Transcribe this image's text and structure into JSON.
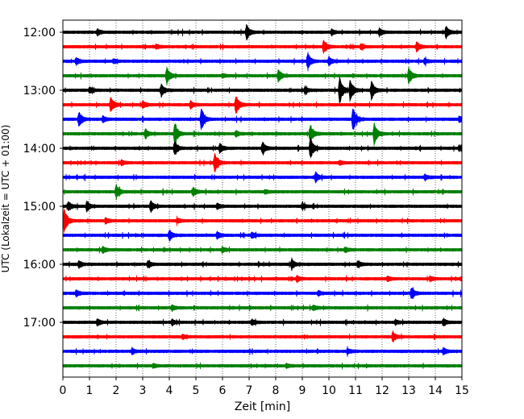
{
  "chart_data": {
    "type": "line",
    "title": "",
    "xlabel": "Zeit  [min]",
    "ylabel": "UTC (Lokalzeit = UTC + 01:00)",
    "xlim": [
      0,
      15
    ],
    "x_ticks": [
      0,
      1,
      2,
      3,
      4,
      5,
      6,
      7,
      8,
      9,
      10,
      11,
      12,
      13,
      14,
      15
    ],
    "y_tick_labels": [
      "12:00",
      "13:00",
      "14:00",
      "15:00",
      "16:00",
      "17:00"
    ],
    "trace_interval_min": 15,
    "trace_count": 24,
    "first_trace": "12:00",
    "grid": "vertical dotted lines at each minute",
    "legend": "none",
    "colors": [
      "#000000",
      "#ff0000",
      "#0000ff",
      "#008000"
    ],
    "events_note": "approximate minute positions and relative amplitudes of visible bursts per 15-minute trace",
    "traces": [
      {
        "start": "12:00",
        "color": "#000000",
        "events": [
          [
            1.3,
            0.35
          ],
          [
            6.9,
            0.8
          ],
          [
            10.1,
            0.3
          ],
          [
            11.9,
            0.45
          ],
          [
            14.4,
            0.65
          ]
        ]
      },
      {
        "start": "12:15",
        "color": "#ff0000",
        "events": [
          [
            9.8,
            0.75
          ],
          [
            13.3,
            0.55
          ],
          [
            3.5,
            0.25
          ],
          [
            11.2,
            0.25
          ]
        ]
      },
      {
        "start": "12:30",
        "color": "#0000ff",
        "events": [
          [
            0.5,
            0.4
          ],
          [
            9.2,
            1.0
          ],
          [
            10.0,
            0.45
          ],
          [
            1.9,
            0.2
          ],
          [
            13.6,
            0.25
          ]
        ]
      },
      {
        "start": "12:45",
        "color": "#008000",
        "events": [
          [
            3.9,
            1.0
          ],
          [
            8.1,
            0.7
          ],
          [
            13.0,
            0.9
          ],
          [
            6.0,
            0.2
          ]
        ]
      },
      {
        "start": "13:00",
        "color": "#000000",
        "events": [
          [
            3.7,
            0.6
          ],
          [
            10.4,
            1.5
          ],
          [
            10.8,
            1.2
          ],
          [
            11.6,
            1.0
          ],
          [
            9.1,
            0.35
          ],
          [
            1.0,
            0.3
          ]
        ]
      },
      {
        "start": "13:15",
        "color": "#ff0000",
        "events": [
          [
            1.8,
            1.0
          ],
          [
            6.5,
            1.1
          ],
          [
            3.0,
            0.4
          ],
          [
            4.8,
            0.35
          ]
        ]
      },
      {
        "start": "13:30",
        "color": "#0000ff",
        "events": [
          [
            0.6,
            0.9
          ],
          [
            5.2,
            1.3
          ],
          [
            10.9,
            1.3
          ],
          [
            1.5,
            0.3
          ],
          [
            14.9,
            0.3
          ]
        ]
      },
      {
        "start": "13:45",
        "color": "#008000",
        "events": [
          [
            3.1,
            0.5
          ],
          [
            4.2,
            1.3
          ],
          [
            9.3,
            1.0
          ],
          [
            11.7,
            1.2
          ],
          [
            6.5,
            0.3
          ]
        ]
      },
      {
        "start": "14:00",
        "color": "#000000",
        "events": [
          [
            4.2,
            0.8
          ],
          [
            5.9,
            0.5
          ],
          [
            7.5,
            0.7
          ],
          [
            9.3,
            1.2
          ],
          [
            14.9,
            0.3
          ]
        ]
      },
      {
        "start": "14:15",
        "color": "#ff0000",
        "events": [
          [
            5.7,
            1.2
          ],
          [
            2.2,
            0.25
          ],
          [
            10.4,
            0.2
          ]
        ]
      },
      {
        "start": "14:30",
        "color": "#0000ff",
        "events": [
          [
            9.5,
            0.6
          ],
          [
            13.6,
            0.3
          ]
        ]
      },
      {
        "start": "14:45",
        "color": "#008000",
        "events": [
          [
            2.0,
            0.8
          ],
          [
            4.9,
            0.45
          ],
          [
            7.6,
            0.2
          ]
        ]
      },
      {
        "start": "15:00",
        "color": "#000000",
        "events": [
          [
            0.2,
            0.5
          ],
          [
            0.9,
            0.5
          ],
          [
            3.3,
            0.6
          ],
          [
            5.8,
            0.3
          ],
          [
            9.0,
            0.3
          ]
        ]
      },
      {
        "start": "15:15",
        "color": "#ff0000",
        "events": [
          [
            0.05,
            1.4
          ],
          [
            1.6,
            0.3
          ],
          [
            4.3,
            0.25
          ]
        ]
      },
      {
        "start": "15:30",
        "color": "#0000ff",
        "events": [
          [
            4.0,
            0.6
          ],
          [
            5.8,
            0.35
          ],
          [
            7.1,
            0.3
          ]
        ]
      },
      {
        "start": "15:45",
        "color": "#008000",
        "events": [
          [
            1.5,
            0.3
          ],
          [
            6.0,
            0.25
          ],
          [
            10.6,
            0.25
          ]
        ]
      },
      {
        "start": "16:00",
        "color": "#000000",
        "events": [
          [
            0.6,
            0.35
          ],
          [
            3.2,
            0.35
          ],
          [
            8.6,
            0.5
          ],
          [
            11.1,
            0.35
          ]
        ]
      },
      {
        "start": "16:15",
        "color": "#ff0000",
        "events": [
          [
            8.8,
            0.3
          ],
          [
            12.2,
            0.25
          ],
          [
            13.8,
            0.25
          ]
        ]
      },
      {
        "start": "16:30",
        "color": "#0000ff",
        "events": [
          [
            0.5,
            0.3
          ],
          [
            13.1,
            0.7
          ],
          [
            9.6,
            0.25
          ]
        ]
      },
      {
        "start": "16:45",
        "color": "#008000",
        "events": [
          [
            4.1,
            0.25
          ],
          [
            9.4,
            0.25
          ]
        ]
      },
      {
        "start": "17:00",
        "color": "#000000",
        "events": [
          [
            1.3,
            0.35
          ],
          [
            4.1,
            0.3
          ],
          [
            7.1,
            0.3
          ],
          [
            14.3,
            0.4
          ],
          [
            12.5,
            0.25
          ]
        ]
      },
      {
        "start": "17:15",
        "color": "#ff0000",
        "events": [
          [
            12.4,
            0.55
          ],
          [
            4.5,
            0.2
          ]
        ]
      },
      {
        "start": "17:30",
        "color": "#0000ff",
        "events": [
          [
            2.6,
            0.3
          ],
          [
            14.3,
            0.35
          ],
          [
            10.7,
            0.3
          ]
        ]
      },
      {
        "start": "17:45",
        "color": "#008000",
        "events": [
          [
            3.4,
            0.2
          ],
          [
            8.4,
            0.2
          ]
        ]
      }
    ]
  }
}
